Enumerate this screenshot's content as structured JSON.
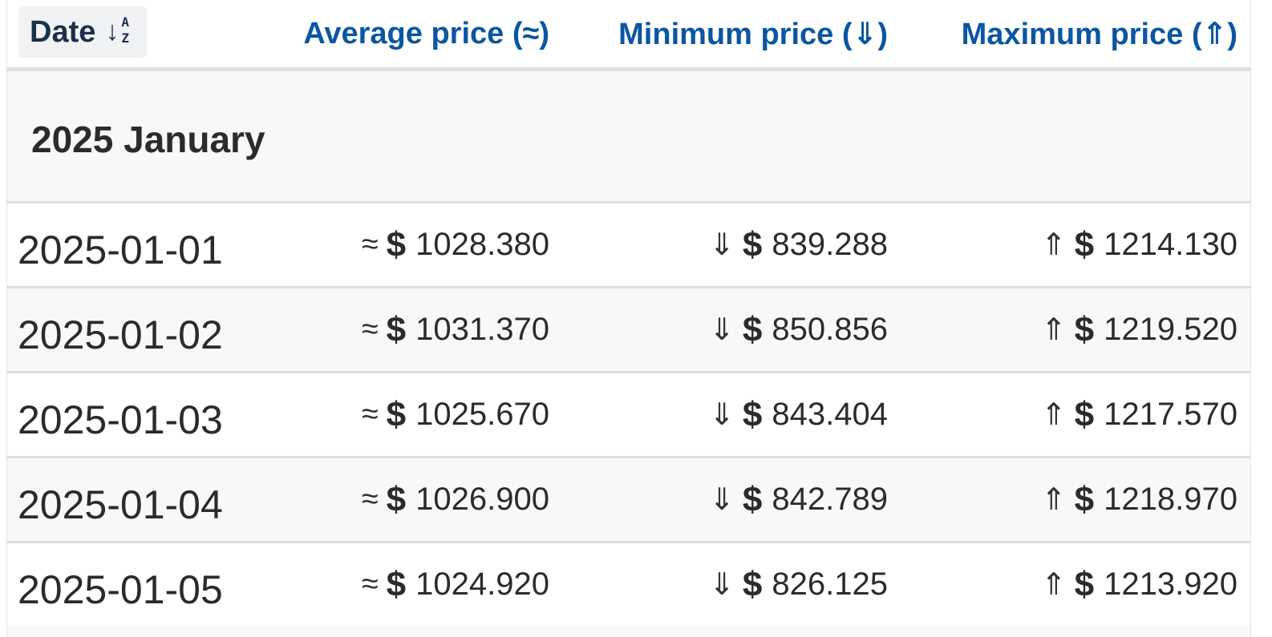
{
  "table": {
    "headers": {
      "date": "Date",
      "date_sort_arrow": "↓",
      "date_sort_letters_top": "A",
      "date_sort_letters_bottom": "Z",
      "average": "Average price (≈)",
      "minimum": "Minimum price (⇓)",
      "maximum": "Maximum price (⇑)"
    },
    "group_label": "2025 January",
    "symbols": {
      "avg": "≈",
      "min": "⇓",
      "max": "⇑",
      "currency": "$"
    },
    "rows": [
      {
        "date": "2025-01-01",
        "avg": "1028.380",
        "min": "839.288",
        "max": "1214.130"
      },
      {
        "date": "2025-01-02",
        "avg": "1031.370",
        "min": "850.856",
        "max": "1219.520"
      },
      {
        "date": "2025-01-03",
        "avg": "1025.670",
        "min": "843.404",
        "max": "1217.570"
      },
      {
        "date": "2025-01-04",
        "avg": "1026.900",
        "min": "842.789",
        "max": "1218.970"
      },
      {
        "date": "2025-01-05",
        "avg": "1024.920",
        "min": "826.125",
        "max": "1213.920"
      }
    ]
  }
}
